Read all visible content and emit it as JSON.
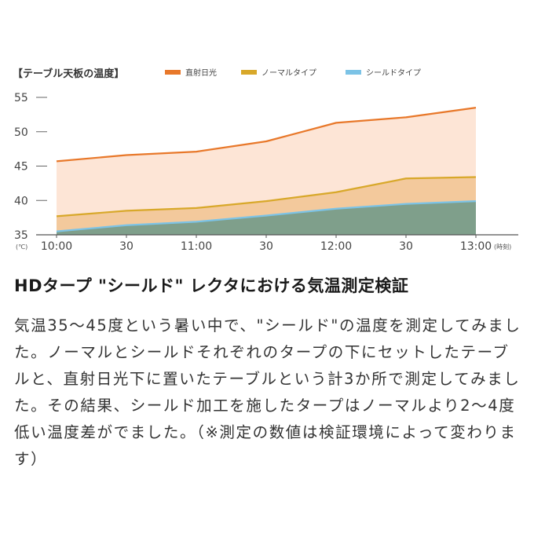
{
  "chart_data": {
    "type": "area",
    "title": "【テーブル天板の温度】",
    "y_unit": "(℃)",
    "x_unit": "(時刻)",
    "categories": [
      "10:00",
      "30",
      "11:00",
      "30",
      "12:00",
      "30",
      "13:00"
    ],
    "y_ticks": [
      "55",
      "50",
      "45",
      "40",
      "35"
    ],
    "ylim": [
      35,
      55
    ],
    "grid": false,
    "legend_position": "top",
    "series": [
      {
        "name": "直射日光",
        "color": "#e8782a",
        "fill": "#fde5d6",
        "x": [
          0,
          1,
          2,
          3,
          4,
          5,
          6
        ],
        "values": [
          45.7,
          46.6,
          47.1,
          48.6,
          51.3,
          52.1,
          53.5
        ]
      },
      {
        "name": "ノーマルタイプ",
        "color": "#d8a82a",
        "fill": "#f3c99c",
        "x": [
          0,
          1,
          2,
          3,
          4,
          5,
          6
        ],
        "values": [
          37.7,
          38.5,
          38.9,
          39.9,
          41.2,
          43.2,
          43.4
        ]
      },
      {
        "name": "シールドタイプ",
        "color": "#7cc3e6",
        "fill": "#7f9f8b",
        "x": [
          0,
          1,
          2,
          3,
          4,
          5,
          6
        ],
        "values": [
          35.5,
          36.4,
          36.9,
          37.8,
          38.8,
          39.5,
          39.9
        ]
      }
    ]
  },
  "article": {
    "heading": "HDタープ \"シールド\" レクタにおける気温測定検証",
    "body": "気温35〜45度という暑い中で、\"シールド\"の温度を測定してみました。ノーマルとシールドそれぞれのタープの下にセットしたテーブルと、直射日光下に置いたテーブルという計3か所で測定してみました。その結果、シールド加工を施したタープはノーマルより2〜4度低い温度差がでました。（※測定の数値は検証環境によって変わります）"
  }
}
